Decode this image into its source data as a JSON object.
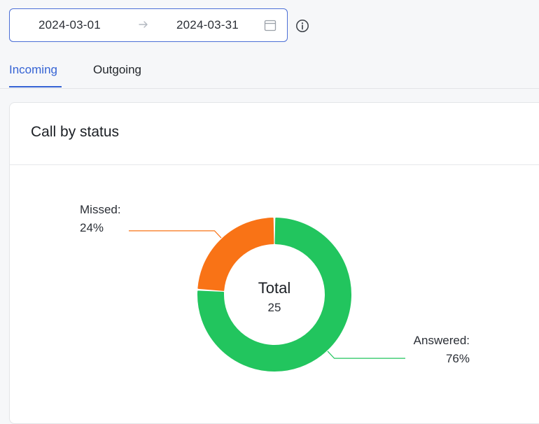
{
  "date_range": {
    "start": "2024-03-01",
    "end": "2024-03-31",
    "separator_icon": "arrow-right-icon",
    "calendar_icon": "calendar-icon"
  },
  "info_icon": "info-icon",
  "tabs": [
    {
      "label": "Incoming",
      "active": true
    },
    {
      "label": "Outgoing",
      "active": false
    }
  ],
  "card": {
    "title": "Call by status"
  },
  "colors": {
    "accent": "#3563d4",
    "missed": "#f97316",
    "answered": "#22c55e"
  },
  "chart_data": {
    "type": "pie",
    "donut": true,
    "center_title": "Total",
    "center_value": "25",
    "slices": [
      {
        "name": "Missed",
        "value": 24,
        "label": "Missed:",
        "percent_label": "24%",
        "color": "#f97316"
      },
      {
        "name": "Answered",
        "value": 76,
        "label": "Answered:",
        "percent_label": "76%",
        "color": "#22c55e"
      }
    ]
  }
}
